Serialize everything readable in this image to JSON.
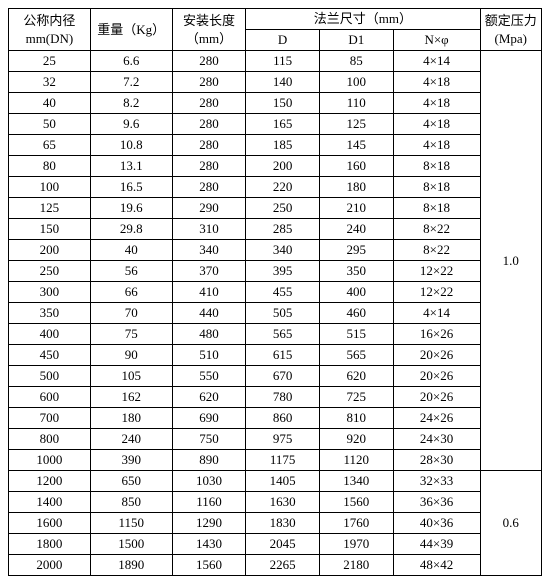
{
  "headers": {
    "dn_top": "公称内径",
    "dn_bot": "mm(DN)",
    "weight": "重量（Kg）",
    "install_top": "安装长度",
    "install_bot": "（mm）",
    "flange": "法兰尺寸（mm）",
    "d": "D",
    "d1": "D1",
    "nphi": "N×φ",
    "press_top": "额定压力",
    "press_bot": "(Mpa)"
  },
  "pressures": {
    "first": "1.0",
    "second": "0.6"
  },
  "rows": [
    {
      "dn": "25",
      "wt": "6.6",
      "len": "280",
      "d": "115",
      "d1": "85",
      "nphi": "4×14"
    },
    {
      "dn": "32",
      "wt": "7.2",
      "len": "280",
      "d": "140",
      "d1": "100",
      "nphi": "4×18"
    },
    {
      "dn": "40",
      "wt": "8.2",
      "len": "280",
      "d": "150",
      "d1": "110",
      "nphi": "4×18"
    },
    {
      "dn": "50",
      "wt": "9.6",
      "len": "280",
      "d": "165",
      "d1": "125",
      "nphi": "4×18"
    },
    {
      "dn": "65",
      "wt": "10.8",
      "len": "280",
      "d": "185",
      "d1": "145",
      "nphi": "4×18"
    },
    {
      "dn": "80",
      "wt": "13.1",
      "len": "280",
      "d": "200",
      "d1": "160",
      "nphi": "8×18"
    },
    {
      "dn": "100",
      "wt": "16.5",
      "len": "280",
      "d": "220",
      "d1": "180",
      "nphi": "8×18"
    },
    {
      "dn": "125",
      "wt": "19.6",
      "len": "290",
      "d": "250",
      "d1": "210",
      "nphi": "8×18"
    },
    {
      "dn": "150",
      "wt": "29.8",
      "len": "310",
      "d": "285",
      "d1": "240",
      "nphi": "8×22"
    },
    {
      "dn": "200",
      "wt": "40",
      "len": "340",
      "d": "340",
      "d1": "295",
      "nphi": "8×22"
    },
    {
      "dn": "250",
      "wt": "56",
      "len": "370",
      "d": "395",
      "d1": "350",
      "nphi": "12×22"
    },
    {
      "dn": "300",
      "wt": "66",
      "len": "410",
      "d": "455",
      "d1": "400",
      "nphi": "12×22"
    },
    {
      "dn": "350",
      "wt": "70",
      "len": "440",
      "d": "505",
      "d1": "460",
      "nphi": "4×14"
    },
    {
      "dn": "400",
      "wt": "75",
      "len": "480",
      "d": "565",
      "d1": "515",
      "nphi": "16×26"
    },
    {
      "dn": "450",
      "wt": "90",
      "len": "510",
      "d": "615",
      "d1": "565",
      "nphi": "20×26"
    },
    {
      "dn": "500",
      "wt": "105",
      "len": "550",
      "d": "670",
      "d1": "620",
      "nphi": "20×26"
    },
    {
      "dn": "600",
      "wt": "162",
      "len": "620",
      "d": "780",
      "d1": "725",
      "nphi": "20×26"
    },
    {
      "dn": "700",
      "wt": "180",
      "len": "690",
      "d": "860",
      "d1": "810",
      "nphi": "24×26"
    },
    {
      "dn": "800",
      "wt": "240",
      "len": "750",
      "d": "975",
      "d1": "920",
      "nphi": "24×30"
    },
    {
      "dn": "1000",
      "wt": "390",
      "len": "890",
      "d": "1175",
      "d1": "1120",
      "nphi": "28×30"
    },
    {
      "dn": "1200",
      "wt": "650",
      "len": "1030",
      "d": "1405",
      "d1": "1340",
      "nphi": "32×33"
    },
    {
      "dn": "1400",
      "wt": "850",
      "len": "1160",
      "d": "1630",
      "d1": "1560",
      "nphi": "36×36"
    },
    {
      "dn": "1600",
      "wt": "1150",
      "len": "1290",
      "d": "1830",
      "d1": "1760",
      "nphi": "40×36"
    },
    {
      "dn": "1800",
      "wt": "1500",
      "len": "1430",
      "d": "2045",
      "d1": "1970",
      "nphi": "44×39"
    },
    {
      "dn": "2000",
      "wt": "1890",
      "len": "1560",
      "d": "2265",
      "d1": "2180",
      "nphi": "48×42"
    }
  ]
}
